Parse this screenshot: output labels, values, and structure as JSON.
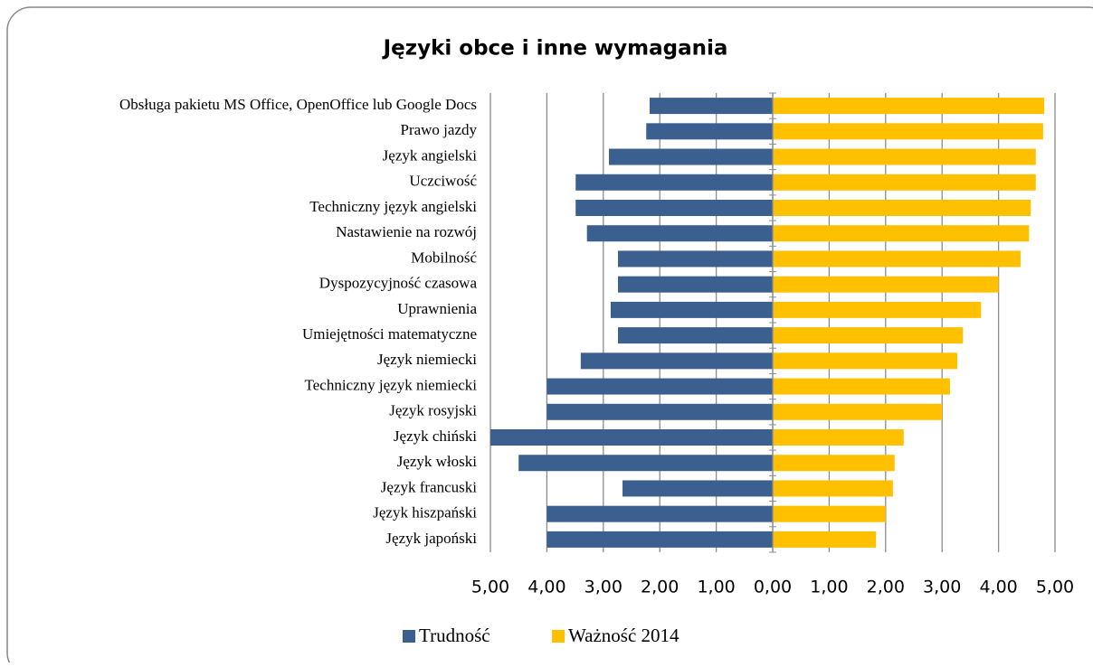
{
  "chart_data": {
    "type": "bar",
    "orientation": "horizontal",
    "title": "Języki obce i inne wymagania",
    "categories": [
      "Obsługa pakietu MS Office, OpenOffice lub Google Docs",
      "Prawo jazdy",
      "Język angielski",
      "Uczciwość",
      "Techniczny język angielski",
      "Nastawienie na rozwój",
      "Mobilność",
      "Dyspozycyjność czasowa",
      "Uprawnienia",
      "Umiejętności matematyczne",
      "Język niemiecki",
      "Techniczny język niemiecki",
      "Język rosyjski",
      "Język chiński",
      "Język włoski",
      "Język francuski",
      "Język hiszpański",
      "Język japoński"
    ],
    "series": [
      {
        "name": "Trudność",
        "color": "#3b5f8f",
        "values": [
          -2.18,
          -2.24,
          -2.9,
          -3.49,
          -3.49,
          -3.29,
          -2.74,
          -2.74,
          -2.87,
          -2.74,
          -3.4,
          -4.0,
          -4.0,
          -5.0,
          -4.5,
          -2.66,
          -4.0,
          -4.0
        ]
      },
      {
        "name": "Ważność 2014",
        "color": "#ffc000",
        "values": [
          4.81,
          4.79,
          4.66,
          4.66,
          4.57,
          4.54,
          4.39,
          4.0,
          3.69,
          3.37,
          3.27,
          3.14,
          3.0,
          2.32,
          2.16,
          2.13,
          2.0,
          1.83
        ]
      }
    ],
    "xlim": [
      -5,
      5
    ],
    "xticks": [
      {
        "value": -5,
        "label": "5,00"
      },
      {
        "value": -4,
        "label": "4,00"
      },
      {
        "value": -3,
        "label": "3,00"
      },
      {
        "value": -2,
        "label": "2,00"
      },
      {
        "value": -1,
        "label": "1,00"
      },
      {
        "value": 0,
        "label": "0,00"
      },
      {
        "value": 1,
        "label": "1,00"
      },
      {
        "value": 2,
        "label": "2,00"
      },
      {
        "value": 3,
        "label": "3,00"
      },
      {
        "value": 4,
        "label": "4,00"
      },
      {
        "value": 5,
        "label": "5,00"
      }
    ],
    "grid": true,
    "legend": "bottom"
  }
}
